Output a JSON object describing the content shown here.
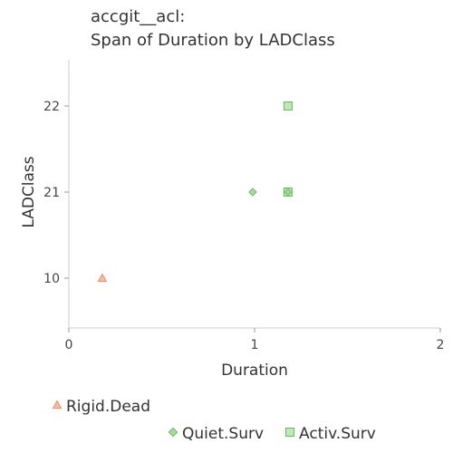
{
  "chart_data": {
    "type": "scatter",
    "title_lines": [
      "accgit__acl:",
      "Span of Duration by LADClass"
    ],
    "xlabel": "Duration",
    "ylabel": "LADClass",
    "x_ticks": [
      0,
      1,
      2
    ],
    "xlim": [
      0,
      2
    ],
    "y_categories": [
      "10",
      "21",
      "22"
    ],
    "grid": false,
    "legend_position": "bottom",
    "series": [
      {
        "name": "Rigid.Dead",
        "marker": "triangle",
        "color": "#f4a582",
        "points": [
          {
            "x": 0.18,
            "y": "10"
          }
        ]
      },
      {
        "name": "Quiet.Surv",
        "marker": "diamond",
        "color": "#8fd17f",
        "points": [
          {
            "x": 0.99,
            "y": "21"
          },
          {
            "x": 1.18,
            "y": "21"
          }
        ]
      },
      {
        "name": "Activ.Surv",
        "marker": "square",
        "color": "#8fd17f",
        "points": [
          {
            "x": 1.18,
            "y": "22"
          },
          {
            "x": 1.18,
            "y": "21"
          }
        ]
      }
    ]
  }
}
